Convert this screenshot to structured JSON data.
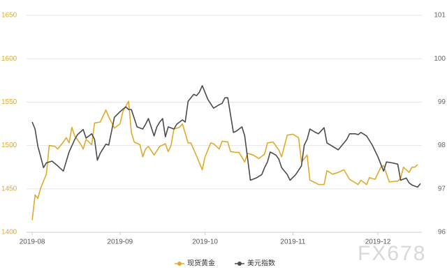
{
  "chart_data": {
    "type": "line",
    "xlim": [
      -2,
      137.5
    ],
    "xticks": [
      {
        "value": 0,
        "label": "2019-08"
      },
      {
        "value": 31,
        "label": "2019-09"
      },
      {
        "value": 61,
        "label": "2019-10"
      },
      {
        "value": 92,
        "label": "2019-11"
      },
      {
        "value": 122,
        "label": "2019-12"
      }
    ],
    "ylim": [
      1400,
      1650
    ],
    "yticks": [
      1400,
      1450,
      1500,
      1550,
      1600,
      1650
    ],
    "y2lim": [
      96,
      101
    ],
    "y2ticks": [
      96,
      97,
      98,
      99,
      100,
      101
    ],
    "grid": true,
    "legend": "bottom",
    "series": [
      {
        "name": "现货黄金",
        "color": "#e0aa2a",
        "axis": "y",
        "x": [
          0,
          1,
          2,
          3,
          5,
          6,
          8,
          9,
          11,
          12,
          13,
          14,
          15,
          17,
          18,
          19,
          21,
          22,
          24,
          26,
          27,
          29,
          31,
          32,
          34,
          35,
          36,
          38,
          39,
          40,
          41,
          43,
          45,
          47,
          48,
          49,
          50,
          52,
          53,
          55,
          56,
          58,
          60,
          61,
          63,
          64,
          66,
          67,
          69,
          70,
          72,
          73,
          75,
          76,
          78,
          80,
          82,
          83,
          85,
          87,
          88,
          90,
          92,
          94,
          95,
          97,
          98,
          100,
          101,
          103,
          104,
          106,
          108,
          110,
          112,
          114,
          115,
          116,
          118,
          119,
          121,
          123,
          124,
          126,
          129,
          130,
          131,
          133,
          134,
          135,
          136
        ],
        "values": [
          1414,
          1443,
          1439,
          1451,
          1467,
          1500,
          1499,
          1496,
          1504,
          1509,
          1503,
          1521,
          1511,
          1502,
          1496,
          1507,
          1501,
          1526,
          1527,
          1541,
          1533,
          1520,
          1525,
          1539,
          1551,
          1515,
          1504,
          1501,
          1487,
          1496,
          1499,
          1489,
          1499,
          1502,
          1493,
          1500,
          1519,
          1521,
          1525,
          1503,
          1503,
          1488,
          1472,
          1487,
          1503,
          1502,
          1496,
          1505,
          1504,
          1493,
          1492,
          1492,
          1481,
          1491,
          1489,
          1485,
          1490,
          1503,
          1504,
          1495,
          1487,
          1512,
          1513,
          1509,
          1481,
          1489,
          1460,
          1457,
          1455,
          1455,
          1471,
          1467,
          1469,
          1472,
          1461,
          1457,
          1455,
          1460,
          1455,
          1463,
          1461,
          1475,
          1477,
          1458,
          1459,
          1462,
          1475,
          1469,
          1475,
          1475,
          1478
        ]
      },
      {
        "name": "美元指数",
        "color": "#4a4a4a",
        "axis": "y2",
        "x": [
          0,
          1,
          2,
          3,
          4,
          5,
          7,
          9,
          11,
          13,
          15,
          16,
          18,
          19,
          21,
          22,
          23,
          24,
          26,
          27,
          29,
          31,
          33,
          34,
          35,
          37,
          39,
          40,
          41,
          43,
          44,
          45,
          46,
          47,
          48,
          50,
          51,
          52,
          53,
          54,
          55,
          57,
          58,
          59,
          60,
          62,
          64,
          66,
          67,
          68,
          69,
          71,
          72,
          74,
          75,
          77,
          79,
          81,
          82,
          83,
          84,
          86,
          87,
          88,
          90,
          91,
          93,
          95,
          96,
          97,
          98,
          100,
          101,
          103,
          104,
          106,
          108,
          109,
          111,
          112,
          114,
          115,
          116,
          118,
          120,
          122,
          124,
          125,
          127,
          129,
          130,
          132,
          133,
          134,
          136,
          137
        ],
        "values": [
          98.54,
          98.38,
          97.98,
          97.74,
          97.49,
          97.6,
          97.64,
          97.53,
          97.41,
          97.85,
          98.14,
          98.25,
          98.37,
          98.17,
          98.27,
          98.14,
          97.66,
          97.82,
          98.03,
          98.01,
          98.65,
          98.78,
          98.89,
          98.83,
          98.83,
          98.43,
          98.38,
          98.49,
          98.62,
          98.22,
          98.43,
          98.54,
          98.62,
          98.2,
          98.43,
          98.38,
          98.49,
          98.54,
          98.59,
          98.54,
          99.02,
          99.18,
          99.15,
          99.23,
          99.38,
          99.06,
          98.86,
          98.94,
          98.97,
          99.1,
          99.1,
          98.3,
          98.33,
          98.43,
          98.22,
          97.2,
          97.25,
          97.33,
          97.49,
          97.62,
          97.85,
          97.78,
          97.69,
          97.49,
          97.33,
          97.2,
          97.33,
          97.53,
          98.01,
          98.14,
          98.38,
          98.3,
          98.27,
          98.41,
          98.06,
          97.98,
          97.9,
          97.98,
          98.14,
          98.27,
          98.27,
          98.25,
          98.3,
          98.22,
          98.01,
          97.74,
          97.41,
          97.62,
          97.6,
          97.57,
          97.2,
          97.25,
          97.14,
          97.09,
          97.04,
          97.12
        ]
      }
    ]
  },
  "watermark": "FX678"
}
